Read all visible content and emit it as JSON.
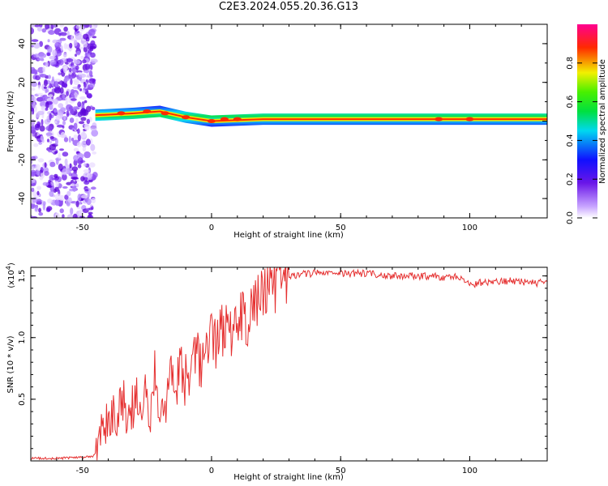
{
  "title": "C2E3.2024.055.20.36.G13",
  "colors": {
    "snr_line": "#e53030",
    "scatter": "#7a2cf0",
    "axis": "#000000"
  },
  "chart_data": [
    {
      "type": "heatmap",
      "xlabel": "Height of straight line (km)",
      "ylabel": "Frequency (Hz)",
      "xlim": [
        -70,
        130
      ],
      "ylim": [
        -50,
        50
      ],
      "x_ticks": [
        "-50",
        "0",
        "50",
        "100"
      ],
      "x_tick_values": [
        -50,
        0,
        50,
        100
      ],
      "y_ticks": [
        "-40",
        "-20",
        "0",
        "20",
        "40"
      ],
      "y_tick_values": [
        -40,
        -20,
        0,
        20,
        40
      ],
      "noise_region_x": [
        -70,
        -45
      ],
      "signal_band": {
        "x": [
          -45,
          -30,
          -20,
          -10,
          0,
          20,
          50,
          100,
          130
        ],
        "center_hz": [
          3,
          4,
          5,
          2,
          0,
          1,
          1,
          1,
          1
        ],
        "amplitude": [
          0.3,
          0.35,
          0.45,
          0.55,
          0.6,
          0.55,
          0.5,
          0.75,
          0.8
        ]
      },
      "colorbar": {
        "label": "Normalized spectral amplitude",
        "range": [
          0,
          1
        ],
        "ticks": [
          "0.0",
          "0.2",
          "0.4",
          "0.6",
          "0.8"
        ],
        "tick_values": [
          0,
          0.2,
          0.4,
          0.6,
          0.8
        ],
        "colormap": [
          "#ffffff",
          "#7a1fe0",
          "#1a1aff",
          "#00ddee",
          "#00ee00",
          "#ffee00",
          "#ff3300",
          "#ff0080"
        ]
      }
    },
    {
      "type": "line",
      "xlabel": "Height of straight line (km)",
      "ylabel": "SNR (10 * v/v)",
      "y_scale_label": "(x10",
      "y_scale_exp": "4",
      "y_scale_close": ")",
      "xlim": [
        -70,
        130
      ],
      "ylim": [
        0,
        1.57
      ],
      "x_ticks": [
        "-50",
        "0",
        "50",
        "100"
      ],
      "x_tick_values": [
        -50,
        0,
        50,
        100
      ],
      "y_ticks": [
        "0.5",
        "1.0",
        "1.5"
      ],
      "y_tick_values": [
        0.5,
        1.0,
        1.5
      ],
      "series": [
        {
          "x": [
            -70,
            -60,
            -50,
            -46,
            -44,
            -42,
            -40,
            -38,
            -36,
            -34,
            -32,
            -30,
            -28,
            -26,
            -24,
            -22,
            -20,
            -18,
            -16,
            -14,
            -12,
            -10,
            -8,
            -6,
            -4,
            -2,
            0,
            2,
            4,
            6,
            8,
            10,
            12,
            14,
            16,
            18,
            20,
            22,
            24,
            26,
            28,
            30,
            32,
            35,
            40,
            45,
            50,
            55,
            60,
            65,
            70,
            75,
            80,
            85,
            88,
            90,
            95,
            100,
            105,
            110,
            115,
            120,
            125,
            130
          ],
          "y": [
            0.02,
            0.02,
            0.03,
            0.04,
            0.1,
            0.22,
            0.3,
            0.45,
            0.35,
            0.55,
            0.3,
            0.5,
            0.45,
            0.6,
            0.4,
            0.7,
            0.5,
            0.45,
            0.65,
            0.55,
            0.75,
            0.65,
            0.7,
            0.85,
            0.8,
            0.95,
            1.0,
            0.95,
            1.05,
            1.1,
            1.0,
            1.15,
            1.2,
            1.1,
            1.25,
            1.3,
            1.35,
            1.38,
            1.4,
            1.43,
            1.45,
            1.48,
            1.5,
            1.52,
            1.52,
            1.53,
            1.52,
            1.52,
            1.52,
            1.51,
            1.5,
            1.5,
            1.5,
            1.5,
            1.49,
            1.48,
            1.5,
            1.43,
            1.45,
            1.45,
            1.46,
            1.45,
            1.44,
            1.45
          ]
        }
      ]
    }
  ]
}
